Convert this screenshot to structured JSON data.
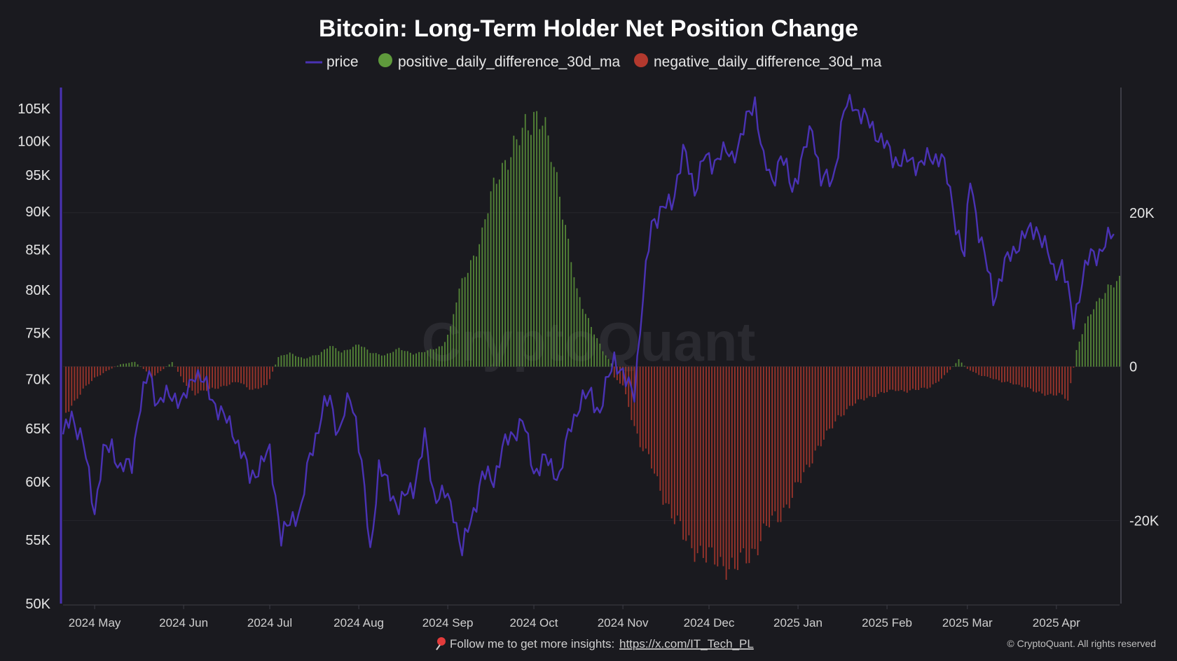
{
  "chart_data": {
    "type": "bar+line",
    "title": "Bitcoin: Long-Term Holder Net Position Change",
    "legend": [
      {
        "name": "price",
        "color": "#4a32b4",
        "shape": "line"
      },
      {
        "name": "positive_daily_difference_30d_ma",
        "color": "#5f9a3c",
        "shape": "dot"
      },
      {
        "name": "negative_daily_difference_30d_ma",
        "color": "#b3392e",
        "shape": "dot"
      }
    ],
    "legend_position": "top-center",
    "watermark": "CryptoQuant",
    "y_left": {
      "scale": "log",
      "range": [
        50000,
        108000
      ],
      "ticks": [
        {
          "v": 50000,
          "label": "50K"
        },
        {
          "v": 55000,
          "label": "55K"
        },
        {
          "v": 60000,
          "label": "60K"
        },
        {
          "v": 65000,
          "label": "65K"
        },
        {
          "v": 70000,
          "label": "70K"
        },
        {
          "v": 75000,
          "label": "75K"
        },
        {
          "v": 80000,
          "label": "80K"
        },
        {
          "v": 85000,
          "label": "85K"
        },
        {
          "v": 90000,
          "label": "90K"
        },
        {
          "v": 95000,
          "label": "95K"
        },
        {
          "v": 100000,
          "label": "100K"
        },
        {
          "v": 105000,
          "label": "105K"
        }
      ]
    },
    "y_right": {
      "scale": "linear",
      "range": [
        -30800,
        36000
      ],
      "ticks": [
        {
          "v": 20000,
          "label": "20K"
        },
        {
          "v": 0,
          "label": "0"
        },
        {
          "v": -20000,
          "label": "-20K"
        }
      ]
    },
    "x_axis": {
      "range": [
        "2024-04-20",
        "2025-04-23"
      ],
      "ticks": [
        {
          "date": "2024-05-01",
          "label": "2024 May"
        },
        {
          "date": "2024-06-01",
          "label": "2024 Jun"
        },
        {
          "date": "2024-07-01",
          "label": "2024 Jul"
        },
        {
          "date": "2024-08-01",
          "label": "2024 Aug"
        },
        {
          "date": "2024-09-01",
          "label": "2024 Sep"
        },
        {
          "date": "2024-10-01",
          "label": "2024 Oct"
        },
        {
          "date": "2024-11-01",
          "label": "2024 Nov"
        },
        {
          "date": "2024-12-01",
          "label": "2024 Dec"
        },
        {
          "date": "2025-01-01",
          "label": "2025 Jan"
        },
        {
          "date": "2025-02-01",
          "label": "2025 Feb"
        },
        {
          "date": "2025-03-01",
          "label": "2025 Mar"
        },
        {
          "date": "2025-04-01",
          "label": "2025 Apr"
        }
      ]
    },
    "grid": true,
    "price_series": [
      [
        "2024-04-20",
        64000
      ],
      [
        "2024-04-23",
        66500
      ],
      [
        "2024-04-27",
        63500
      ],
      [
        "2024-05-01",
        57500
      ],
      [
        "2024-05-04",
        62500
      ],
      [
        "2024-05-07",
        63500
      ],
      [
        "2024-05-10",
        61000
      ],
      [
        "2024-05-14",
        61800
      ],
      [
        "2024-05-16",
        66000
      ],
      [
        "2024-05-20",
        70800
      ],
      [
        "2024-05-23",
        67500
      ],
      [
        "2024-05-28",
        68500
      ],
      [
        "2024-06-01",
        67500
      ],
      [
        "2024-06-05",
        71000
      ],
      [
        "2024-06-08",
        69500
      ],
      [
        "2024-06-12",
        67500
      ],
      [
        "2024-06-15",
        66000
      ],
      [
        "2024-06-18",
        65000
      ],
      [
        "2024-06-24",
        60500
      ],
      [
        "2024-06-28",
        61500
      ],
      [
        "2024-07-01",
        62800
      ],
      [
        "2024-07-05",
        55000
      ],
      [
        "2024-07-09",
        57000
      ],
      [
        "2024-07-12",
        57500
      ],
      [
        "2024-07-15",
        62500
      ],
      [
        "2024-07-20",
        67000
      ],
      [
        "2024-07-22",
        68000
      ],
      [
        "2024-07-25",
        64500
      ],
      [
        "2024-07-29",
        68200
      ],
      [
        "2024-07-31",
        66000
      ],
      [
        "2024-08-02",
        61500
      ],
      [
        "2024-08-05",
        53800
      ],
      [
        "2024-08-08",
        61500
      ],
      [
        "2024-08-12",
        59000
      ],
      [
        "2024-08-15",
        58000
      ],
      [
        "2024-08-20",
        59500
      ],
      [
        "2024-08-24",
        64000
      ],
      [
        "2024-08-27",
        59000
      ],
      [
        "2024-08-31",
        58800
      ],
      [
        "2024-09-03",
        57500
      ],
      [
        "2024-09-06",
        54000
      ],
      [
        "2024-09-10",
        57500
      ],
      [
        "2024-09-13",
        60500
      ],
      [
        "2024-09-17",
        60300
      ],
      [
        "2024-09-20",
        63000
      ],
      [
        "2024-09-27",
        65800
      ],
      [
        "2024-10-01",
        61000
      ],
      [
        "2024-10-05",
        62000
      ],
      [
        "2024-10-10",
        60500
      ],
      [
        "2024-10-14",
        65500
      ],
      [
        "2024-10-17",
        67500
      ],
      [
        "2024-10-21",
        68500
      ],
      [
        "2024-10-24",
        66500
      ],
      [
        "2024-10-29",
        72500
      ],
      [
        "2024-11-02",
        69500
      ],
      [
        "2024-11-05",
        68800
      ],
      [
        "2024-11-07",
        75500
      ],
      [
        "2024-11-11",
        88500
      ],
      [
        "2024-11-14",
        90000
      ],
      [
        "2024-11-18",
        91000
      ],
      [
        "2024-11-22",
        98500
      ],
      [
        "2024-11-26",
        93000
      ],
      [
        "2024-11-29",
        97500
      ],
      [
        "2024-12-02",
        96500
      ],
      [
        "2024-12-05",
        98500
      ],
      [
        "2024-12-09",
        97500
      ],
      [
        "2024-12-12",
        100500
      ],
      [
        "2024-12-17",
        106300
      ],
      [
        "2024-12-20",
        97000
      ],
      [
        "2024-12-23",
        94000
      ],
      [
        "2024-12-26",
        98000
      ],
      [
        "2024-12-30",
        93000
      ],
      [
        "2025-01-06",
        102000
      ],
      [
        "2025-01-09",
        94500
      ],
      [
        "2025-01-13",
        94000
      ],
      [
        "2025-01-17",
        104500
      ],
      [
        "2025-01-20",
        106000
      ],
      [
        "2025-01-23",
        104000
      ],
      [
        "2025-01-28",
        101500
      ],
      [
        "2025-02-03",
        97500
      ],
      [
        "2025-02-07",
        97000
      ],
      [
        "2025-02-13",
        96800
      ],
      [
        "2025-02-20",
        98000
      ],
      [
        "2025-02-25",
        88500
      ],
      [
        "2025-02-28",
        84000
      ],
      [
        "2025-03-02",
        94500
      ],
      [
        "2025-03-05",
        87500
      ],
      [
        "2025-03-10",
        79000
      ],
      [
        "2025-03-14",
        83000
      ],
      [
        "2025-03-19",
        86000
      ],
      [
        "2025-03-25",
        88000
      ],
      [
        "2025-03-31",
        82500
      ],
      [
        "2025-04-03",
        83000
      ],
      [
        "2025-04-07",
        76500
      ],
      [
        "2025-04-10",
        81000
      ],
      [
        "2025-04-13",
        84500
      ],
      [
        "2025-04-17",
        84800
      ],
      [
        "2025-04-21",
        87500
      ]
    ],
    "net_position_series": [
      [
        "2024-04-21",
        -6000
      ],
      [
        "2024-04-24",
        -4500
      ],
      [
        "2024-04-27",
        -3000
      ],
      [
        "2024-05-01",
        -1500
      ],
      [
        "2024-05-05",
        -600
      ],
      [
        "2024-05-10",
        300
      ],
      [
        "2024-05-15",
        600
      ],
      [
        "2024-05-18",
        -300
      ],
      [
        "2024-05-21",
        -1400
      ],
      [
        "2024-05-25",
        -300
      ],
      [
        "2024-05-28",
        600
      ],
      [
        "2024-06-01",
        -2000
      ],
      [
        "2024-06-05",
        -3500
      ],
      [
        "2024-06-10",
        -3000
      ],
      [
        "2024-06-15",
        -2500
      ],
      [
        "2024-06-20",
        -2000
      ],
      [
        "2024-06-25",
        -3000
      ],
      [
        "2024-06-30",
        -2500
      ],
      [
        "2024-07-04",
        1200
      ],
      [
        "2024-07-08",
        1800
      ],
      [
        "2024-07-13",
        1000
      ],
      [
        "2024-07-18",
        1600
      ],
      [
        "2024-07-22",
        2800
      ],
      [
        "2024-07-26",
        1800
      ],
      [
        "2024-08-01",
        3000
      ],
      [
        "2024-08-05",
        1800
      ],
      [
        "2024-08-10",
        1500
      ],
      [
        "2024-08-15",
        2300
      ],
      [
        "2024-08-20",
        1700
      ],
      [
        "2024-08-25",
        2000
      ],
      [
        "2024-08-30",
        2700
      ],
      [
        "2024-09-02",
        5000
      ],
      [
        "2024-09-04",
        8500
      ],
      [
        "2024-09-07",
        12000
      ],
      [
        "2024-09-10",
        14500
      ],
      [
        "2024-09-13",
        17000
      ],
      [
        "2024-09-16",
        22000
      ],
      [
        "2024-09-19",
        26000
      ],
      [
        "2024-09-22",
        27000
      ],
      [
        "2024-09-25",
        28500
      ],
      [
        "2024-09-28",
        31500
      ],
      [
        "2024-10-01",
        33000
      ],
      [
        "2024-10-04",
        31500
      ],
      [
        "2024-10-07",
        27500
      ],
      [
        "2024-10-10",
        23000
      ],
      [
        "2024-10-13",
        16000
      ],
      [
        "2024-10-16",
        9500
      ],
      [
        "2024-10-19",
        7000
      ],
      [
        "2024-10-22",
        4500
      ],
      [
        "2024-10-25",
        2000
      ],
      [
        "2024-10-28",
        400
      ],
      [
        "2024-10-29",
        -1500
      ],
      [
        "2024-11-01",
        -2500
      ],
      [
        "2024-11-04",
        -6500
      ],
      [
        "2024-11-07",
        -10000
      ],
      [
        "2024-11-10",
        -12000
      ],
      [
        "2024-11-13",
        -15000
      ],
      [
        "2024-11-16",
        -17500
      ],
      [
        "2024-11-19",
        -20000
      ],
      [
        "2024-11-22",
        -22000
      ],
      [
        "2024-11-26",
        -23500
      ],
      [
        "2024-11-30",
        -25000
      ],
      [
        "2024-12-03",
        -25000
      ],
      [
        "2024-12-06",
        -25500
      ],
      [
        "2024-12-10",
        -26500
      ],
      [
        "2024-12-13",
        -25000
      ],
      [
        "2024-12-16",
        -24000
      ],
      [
        "2024-12-19",
        -22500
      ],
      [
        "2024-12-22",
        -20500
      ],
      [
        "2024-12-26",
        -19000
      ],
      [
        "2024-12-30",
        -17000
      ],
      [
        "2025-01-03",
        -14000
      ],
      [
        "2025-01-07",
        -11000
      ],
      [
        "2025-01-11",
        -9000
      ],
      [
        "2025-01-15",
        -6500
      ],
      [
        "2025-01-20",
        -5000
      ],
      [
        "2025-01-25",
        -4000
      ],
      [
        "2025-01-30",
        -3500
      ],
      [
        "2025-02-04",
        -3000
      ],
      [
        "2025-02-08",
        -3200
      ],
      [
        "2025-02-12",
        -3000
      ],
      [
        "2025-02-16",
        -2600
      ],
      [
        "2025-02-20",
        -1600
      ],
      [
        "2025-02-23",
        -400
      ],
      [
        "2025-02-26",
        900
      ],
      [
        "2025-03-01",
        -300
      ],
      [
        "2025-03-05",
        -1100
      ],
      [
        "2025-03-09",
        -1400
      ],
      [
        "2025-03-13",
        -2000
      ],
      [
        "2025-03-17",
        -2200
      ],
      [
        "2025-03-21",
        -2600
      ],
      [
        "2025-03-25",
        -3400
      ],
      [
        "2025-03-29",
        -3600
      ],
      [
        "2025-04-02",
        -3600
      ],
      [
        "2025-04-05",
        -4400
      ],
      [
        "2025-04-08",
        2000
      ],
      [
        "2025-04-11",
        5500
      ],
      [
        "2025-04-14",
        8000
      ],
      [
        "2025-04-18",
        9500
      ],
      [
        "2025-04-23",
        11500
      ]
    ]
  },
  "footer": {
    "pin_icon": "pin-icon",
    "text": "Follow me to get more insights:",
    "link": "https://x.com/IT_Tech_PL",
    "copyright": "© CryptoQuant. All rights reserved"
  },
  "colors": {
    "background": "#1a1a1f",
    "price_line": "#4a32b4",
    "positive_bar": "#5f9a3c",
    "negative_bar": "#b3392e",
    "grid": "#26262c",
    "axis": "#3d3d46"
  }
}
